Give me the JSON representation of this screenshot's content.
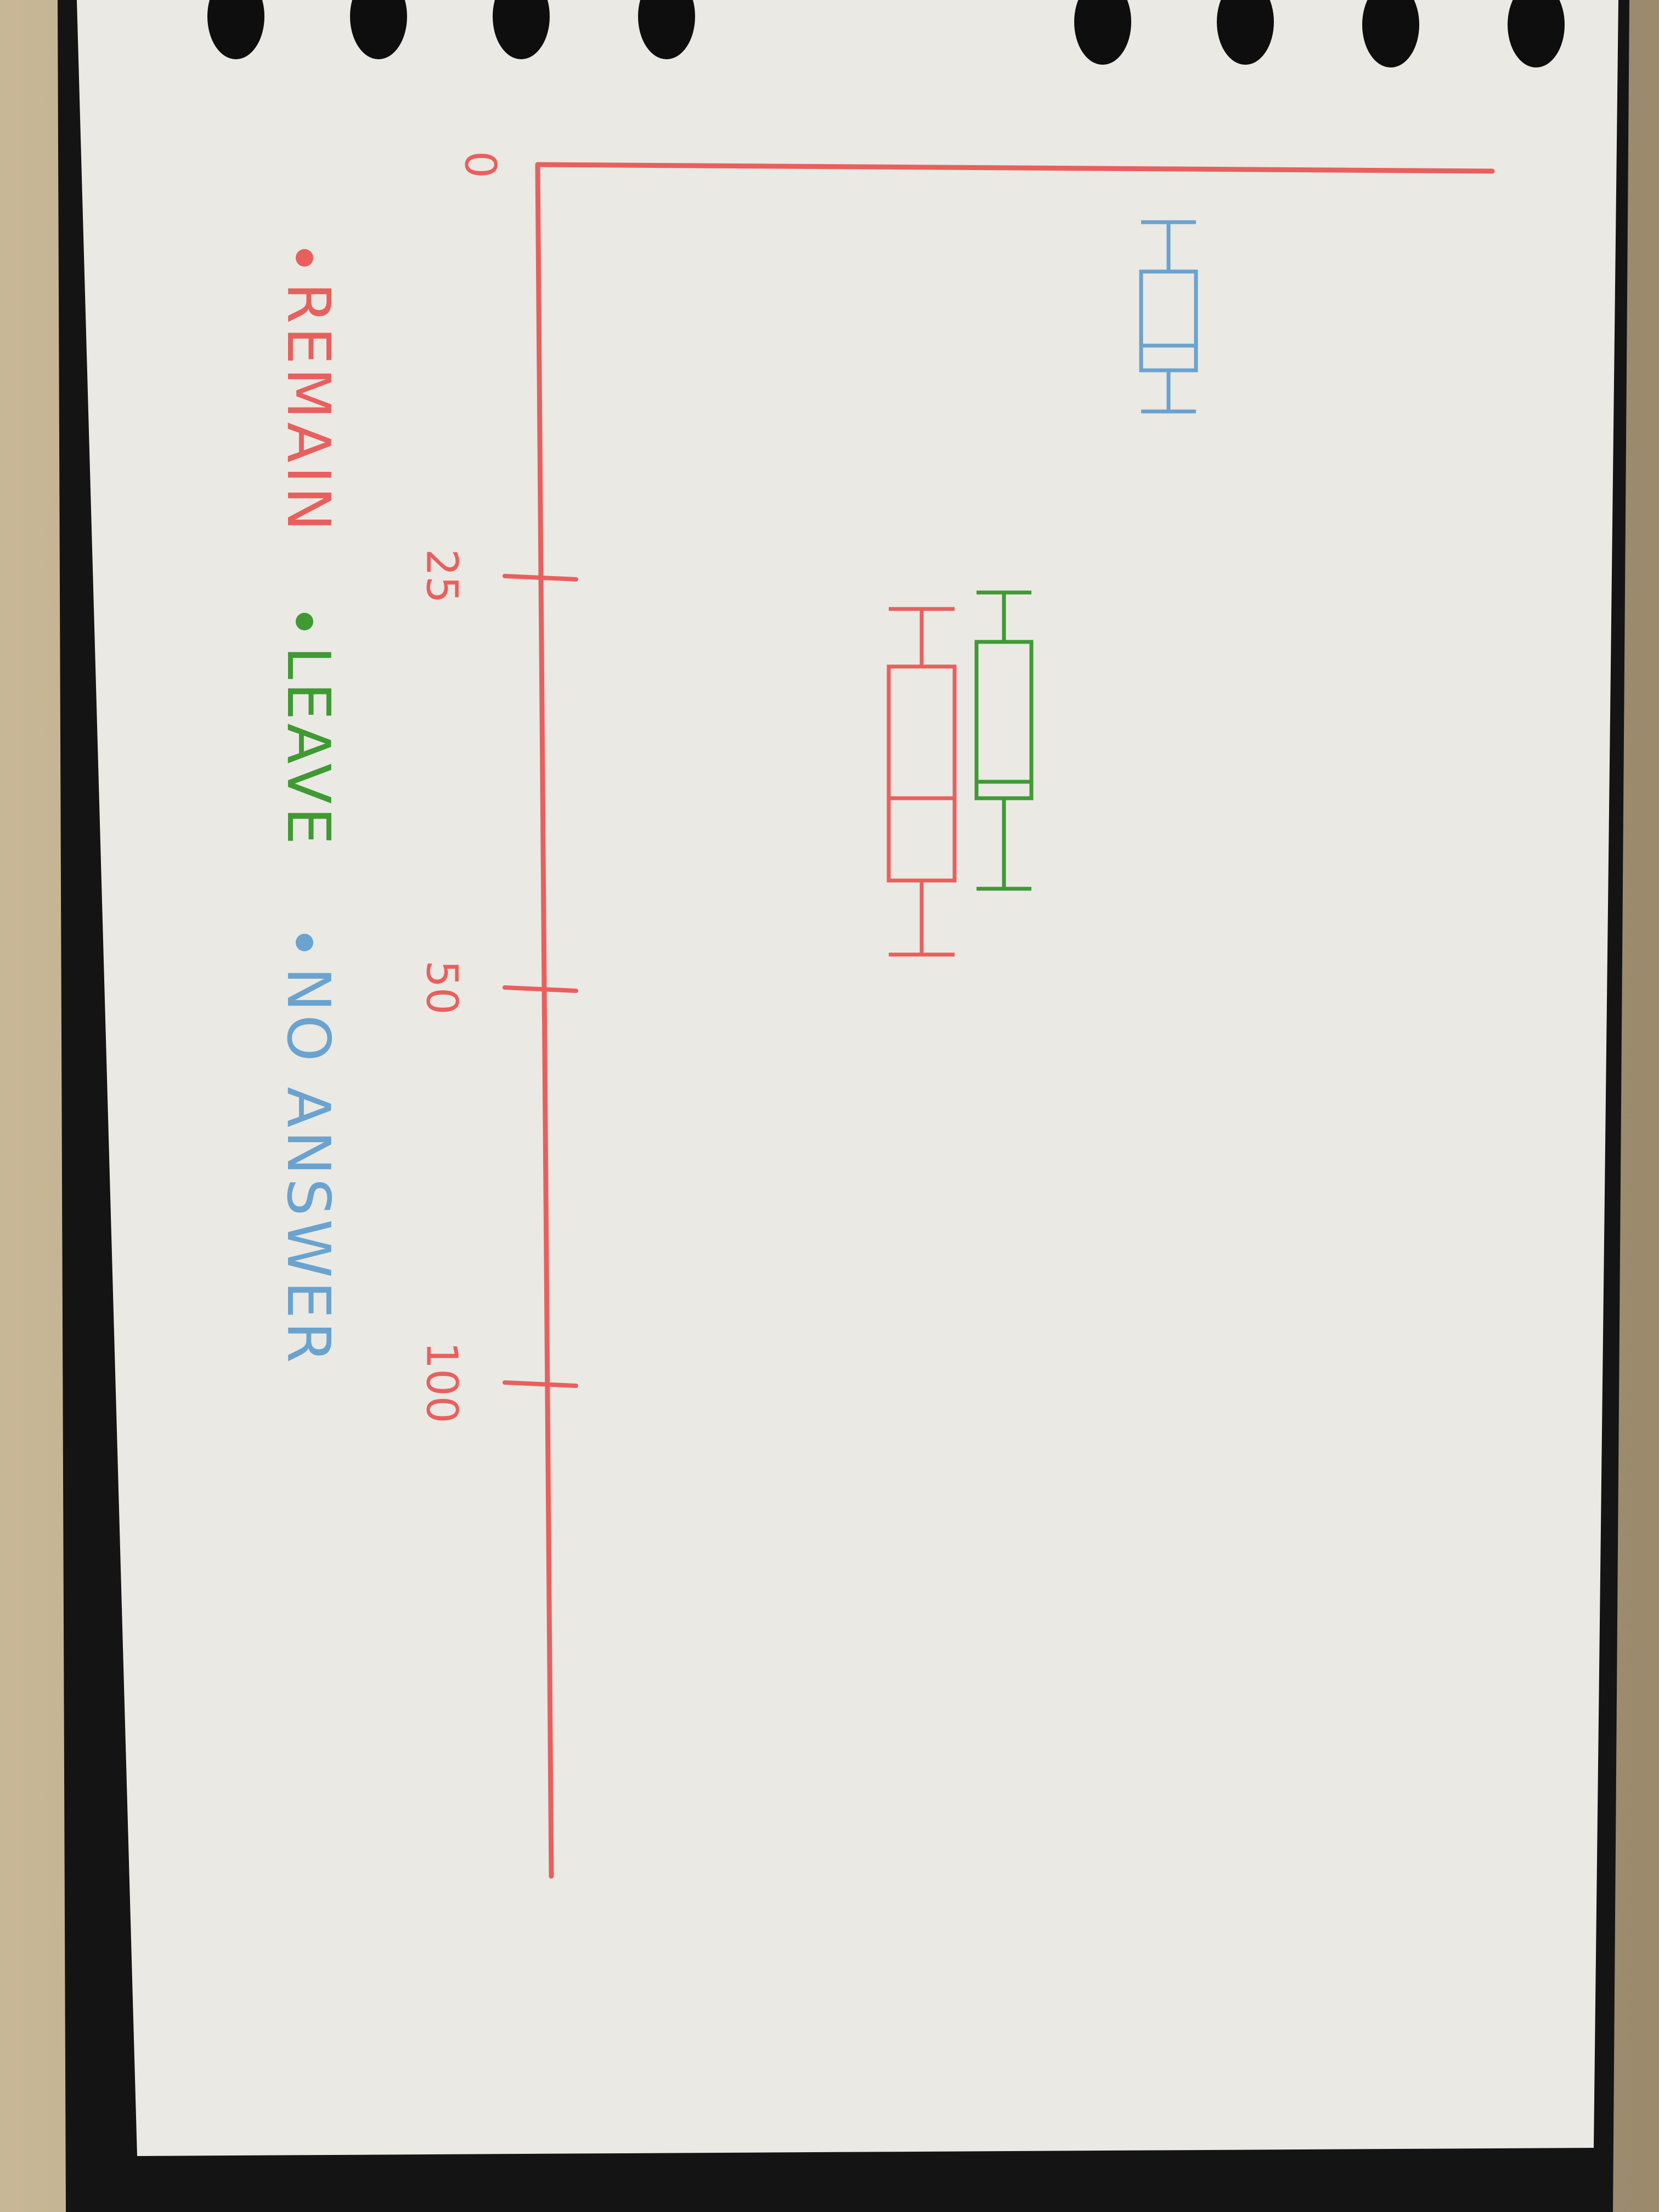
{
  "chart_data": {
    "type": "boxplot",
    "orientation": "horizontal",
    "xlim": [
      0,
      100
    ],
    "ticks": [
      {
        "value": 0,
        "label": "0"
      },
      {
        "value": 25,
        "label": "25"
      },
      {
        "value": 50,
        "label": "50"
      },
      {
        "value": 100,
        "label": "100"
      }
    ],
    "series": [
      {
        "name": "REMAIN",
        "color": "#e8605e",
        "min": 27,
        "q1": 30.5,
        "median": 38.5,
        "q3": 43.5,
        "max": 48
      },
      {
        "name": "LEAVE",
        "color": "#3f9a33",
        "min": 26,
        "q1": 29,
        "median": 37.5,
        "q3": 38.5,
        "max": 44
      },
      {
        "name": "NO ANSWER",
        "color": "#6aa3cf",
        "min": 3.5,
        "q1": 6.5,
        "median": 11,
        "q3": 12.5,
        "max": 15
      }
    ],
    "legend_placement": "left"
  }
}
